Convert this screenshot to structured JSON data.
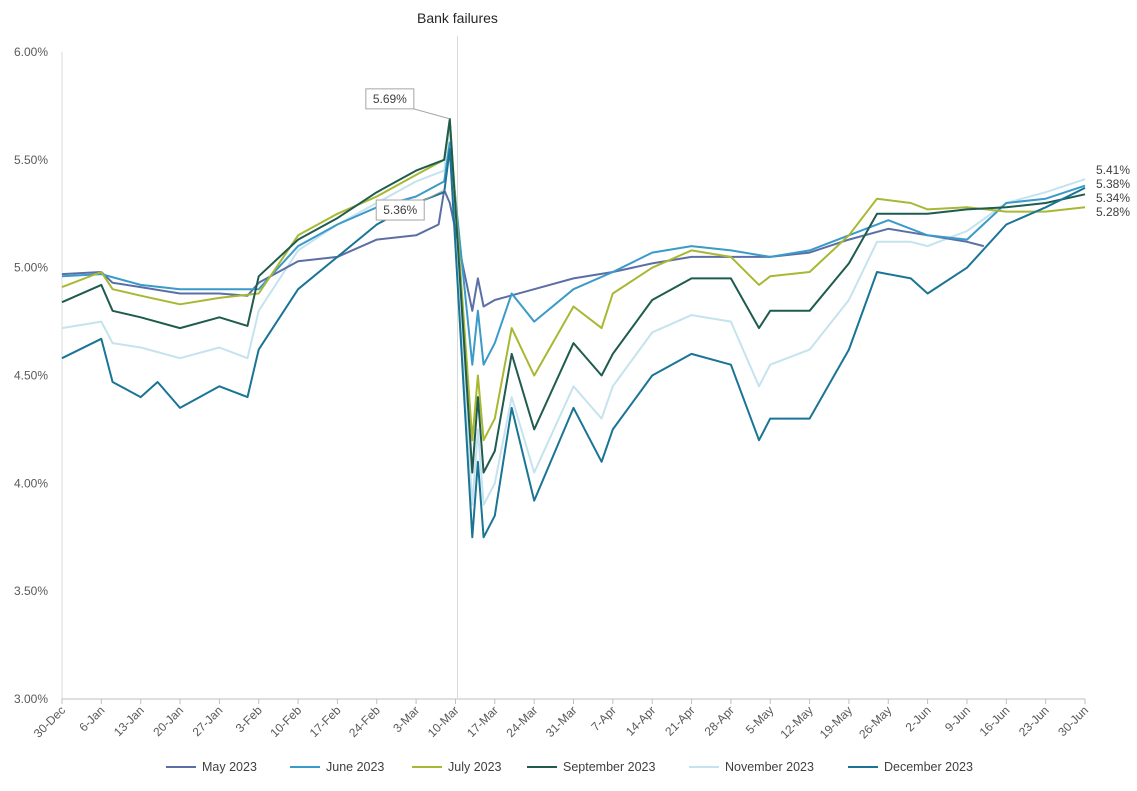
{
  "chart_data": {
    "type": "line",
    "title": "",
    "xlabel": "",
    "ylabel": "",
    "ylim": [
      3.0,
      6.0
    ],
    "y_ticks": [
      "3.00%",
      "3.50%",
      "4.00%",
      "4.50%",
      "5.00%",
      "5.50%",
      "6.00%"
    ],
    "x_ticks": [
      "30-Dec",
      "6-Jan",
      "13-Jan",
      "20-Jan",
      "27-Jan",
      "3-Feb",
      "10-Feb",
      "17-Feb",
      "24-Feb",
      "3-Mar",
      "10-Mar",
      "17-Mar",
      "24-Mar",
      "31-Mar",
      "7-Apr",
      "14-Apr",
      "21-Apr",
      "28-Apr",
      "5-May",
      "12-May",
      "19-May",
      "26-May",
      "2-Jun",
      "9-Jun",
      "16-Jun",
      "23-Jun",
      "30-Jun"
    ],
    "grid": false,
    "legend_position": "bottom",
    "event_marker": {
      "label": "Bank failures",
      "date": "10-Mar"
    },
    "annotations": [
      {
        "text": "5.69%",
        "date": "9-Mar",
        "value": 5.69
      },
      {
        "text": "5.36%",
        "date": "8-Mar",
        "value": 5.36
      }
    ],
    "end_labels": [
      "5.41%",
      "5.38%",
      "5.34%",
      "5.28%"
    ],
    "series": [
      {
        "name": "May 2023",
        "color": "#5B6FA6",
        "points": [
          [
            "30-Dec",
            4.97
          ],
          [
            "6-Jan",
            4.98
          ],
          [
            "8-Jan",
            4.93
          ],
          [
            "13-Jan",
            4.91
          ],
          [
            "20-Jan",
            4.88
          ],
          [
            "27-Jan",
            4.88
          ],
          [
            "1-Feb",
            4.87
          ],
          [
            "3-Feb",
            4.93
          ],
          [
            "10-Feb",
            5.03
          ],
          [
            "17-Feb",
            5.05
          ],
          [
            "24-Feb",
            5.13
          ],
          [
            "3-Mar",
            5.15
          ],
          [
            "7-Mar",
            5.2
          ],
          [
            "8-Mar",
            5.36
          ],
          [
            "9-Mar",
            5.3
          ],
          [
            "13-Mar",
            4.8
          ],
          [
            "14-Mar",
            4.95
          ],
          [
            "15-Mar",
            4.82
          ],
          [
            "17-Mar",
            4.85
          ],
          [
            "24-Mar",
            4.9
          ],
          [
            "31-Mar",
            4.95
          ],
          [
            "7-Apr",
            4.98
          ],
          [
            "14-Apr",
            5.02
          ],
          [
            "21-Apr",
            5.05
          ],
          [
            "28-Apr",
            5.05
          ],
          [
            "5-May",
            5.05
          ],
          [
            "12-May",
            5.07
          ],
          [
            "19-May",
            5.13
          ],
          [
            "26-May",
            5.18
          ],
          [
            "2-Jun",
            5.15
          ],
          [
            "9-Jun",
            5.12
          ],
          [
            "12-Jun",
            5.1
          ]
        ]
      },
      {
        "name": "June 2023",
        "color": "#3A9AC8",
        "points": [
          [
            "30-Dec",
            4.96
          ],
          [
            "6-Jan",
            4.97
          ],
          [
            "13-Jan",
            4.92
          ],
          [
            "20-Jan",
            4.9
          ],
          [
            "27-Jan",
            4.9
          ],
          [
            "3-Feb",
            4.9
          ],
          [
            "10-Feb",
            5.1
          ],
          [
            "17-Feb",
            5.2
          ],
          [
            "24-Feb",
            5.28
          ],
          [
            "3-Mar",
            5.33
          ],
          [
            "8-Mar",
            5.4
          ],
          [
            "9-Mar",
            5.58
          ],
          [
            "13-Mar",
            4.55
          ],
          [
            "14-Mar",
            4.8
          ],
          [
            "15-Mar",
            4.55
          ],
          [
            "17-Mar",
            4.65
          ],
          [
            "20-Mar",
            4.88
          ],
          [
            "24-Mar",
            4.75
          ],
          [
            "31-Mar",
            4.9
          ],
          [
            "7-Apr",
            4.98
          ],
          [
            "14-Apr",
            5.07
          ],
          [
            "21-Apr",
            5.1
          ],
          [
            "28-Apr",
            5.08
          ],
          [
            "5-May",
            5.05
          ],
          [
            "12-May",
            5.08
          ],
          [
            "19-May",
            5.15
          ],
          [
            "26-May",
            5.22
          ],
          [
            "2-Jun",
            5.15
          ],
          [
            "9-Jun",
            5.13
          ],
          [
            "16-Jun",
            5.3
          ],
          [
            "23-Jun",
            5.32
          ],
          [
            "30-Jun",
            5.38
          ]
        ]
      },
      {
        "name": "July 2023",
        "color": "#A8B832",
        "points": [
          [
            "30-Dec",
            4.91
          ],
          [
            "6-Jan",
            4.98
          ],
          [
            "8-Jan",
            4.9
          ],
          [
            "13-Jan",
            4.87
          ],
          [
            "20-Jan",
            4.83
          ],
          [
            "27-Jan",
            4.86
          ],
          [
            "3-Feb",
            4.88
          ],
          [
            "10-Feb",
            5.15
          ],
          [
            "17-Feb",
            5.25
          ],
          [
            "24-Feb",
            5.33
          ],
          [
            "3-Mar",
            5.43
          ],
          [
            "8-Mar",
            5.5
          ],
          [
            "9-Mar",
            5.68
          ],
          [
            "13-Mar",
            4.2
          ],
          [
            "14-Mar",
            4.5
          ],
          [
            "15-Mar",
            4.2
          ],
          [
            "17-Mar",
            4.3
          ],
          [
            "20-Mar",
            4.72
          ],
          [
            "24-Mar",
            4.5
          ],
          [
            "31-Mar",
            4.82
          ],
          [
            "5-Apr",
            4.72
          ],
          [
            "7-Apr",
            4.88
          ],
          [
            "14-Apr",
            5.0
          ],
          [
            "21-Apr",
            5.08
          ],
          [
            "28-Apr",
            5.05
          ],
          [
            "3-May",
            4.92
          ],
          [
            "5-May",
            4.96
          ],
          [
            "12-May",
            4.98
          ],
          [
            "19-May",
            5.15
          ],
          [
            "24-May",
            5.32
          ],
          [
            "30-May",
            5.3
          ],
          [
            "2-Jun",
            5.27
          ],
          [
            "9-Jun",
            5.28
          ],
          [
            "16-Jun",
            5.26
          ],
          [
            "23-Jun",
            5.26
          ],
          [
            "30-Jun",
            5.28
          ]
        ]
      },
      {
        "name": "September 2023",
        "color": "#1F5C4E",
        "points": [
          [
            "30-Dec",
            4.84
          ],
          [
            "6-Jan",
            4.92
          ],
          [
            "8-Jan",
            4.8
          ],
          [
            "13-Jan",
            4.77
          ],
          [
            "20-Jan",
            4.72
          ],
          [
            "27-Jan",
            4.77
          ],
          [
            "1-Feb",
            4.73
          ],
          [
            "3-Feb",
            4.96
          ],
          [
            "10-Feb",
            5.13
          ],
          [
            "17-Feb",
            5.23
          ],
          [
            "24-Feb",
            5.35
          ],
          [
            "3-Mar",
            5.45
          ],
          [
            "8-Mar",
            5.5
          ],
          [
            "9-Mar",
            5.69
          ],
          [
            "13-Mar",
            4.05
          ],
          [
            "14-Mar",
            4.4
          ],
          [
            "15-Mar",
            4.05
          ],
          [
            "17-Mar",
            4.15
          ],
          [
            "20-Mar",
            4.6
          ],
          [
            "24-Mar",
            4.25
          ],
          [
            "31-Mar",
            4.65
          ],
          [
            "5-Apr",
            4.5
          ],
          [
            "7-Apr",
            4.6
          ],
          [
            "14-Apr",
            4.85
          ],
          [
            "21-Apr",
            4.95
          ],
          [
            "28-Apr",
            4.95
          ],
          [
            "3-May",
            4.72
          ],
          [
            "5-May",
            4.8
          ],
          [
            "12-May",
            4.8
          ],
          [
            "19-May",
            5.02
          ],
          [
            "24-May",
            5.25
          ],
          [
            "30-May",
            5.25
          ],
          [
            "2-Jun",
            5.25
          ],
          [
            "9-Jun",
            5.27
          ],
          [
            "16-Jun",
            5.28
          ],
          [
            "23-Jun",
            5.3
          ],
          [
            "30-Jun",
            5.34
          ]
        ]
      },
      {
        "name": "November 2023",
        "color": "#C5E3EE",
        "points": [
          [
            "30-Dec",
            4.72
          ],
          [
            "6-Jan",
            4.75
          ],
          [
            "8-Jan",
            4.65
          ],
          [
            "13-Jan",
            4.63
          ],
          [
            "20-Jan",
            4.58
          ],
          [
            "27-Jan",
            4.63
          ],
          [
            "1-Feb",
            4.58
          ],
          [
            "3-Feb",
            4.8
          ],
          [
            "10-Feb",
            5.08
          ],
          [
            "17-Feb",
            5.2
          ],
          [
            "24-Feb",
            5.3
          ],
          [
            "3-Mar",
            5.4
          ],
          [
            "8-Mar",
            5.45
          ],
          [
            "9-Mar",
            5.65
          ],
          [
            "13-Mar",
            3.9
          ],
          [
            "14-Mar",
            4.25
          ],
          [
            "15-Mar",
            3.9
          ],
          [
            "17-Mar",
            4.0
          ],
          [
            "20-Mar",
            4.4
          ],
          [
            "24-Mar",
            4.05
          ],
          [
            "31-Mar",
            4.45
          ],
          [
            "5-Apr",
            4.3
          ],
          [
            "7-Apr",
            4.45
          ],
          [
            "14-Apr",
            4.7
          ],
          [
            "21-Apr",
            4.78
          ],
          [
            "28-Apr",
            4.75
          ],
          [
            "3-May",
            4.45
          ],
          [
            "5-May",
            4.55
          ],
          [
            "12-May",
            4.62
          ],
          [
            "19-May",
            4.85
          ],
          [
            "24-May",
            5.12
          ],
          [
            "30-May",
            5.12
          ],
          [
            "2-Jun",
            5.1
          ],
          [
            "9-Jun",
            5.17
          ],
          [
            "16-Jun",
            5.3
          ],
          [
            "23-Jun",
            5.35
          ],
          [
            "30-Jun",
            5.41
          ]
        ]
      },
      {
        "name": "December 2023",
        "color": "#1A7496",
        "points": [
          [
            "30-Dec",
            4.58
          ],
          [
            "6-Jan",
            4.67
          ],
          [
            "8-Jan",
            4.47
          ],
          [
            "13-Jan",
            4.4
          ],
          [
            "16-Jan",
            4.47
          ],
          [
            "20-Jan",
            4.35
          ],
          [
            "27-Jan",
            4.45
          ],
          [
            "1-Feb",
            4.4
          ],
          [
            "3-Feb",
            4.62
          ],
          [
            "10-Feb",
            4.9
          ],
          [
            "17-Feb",
            5.05
          ],
          [
            "24-Feb",
            5.2
          ],
          [
            "3-Mar",
            5.3
          ],
          [
            "8-Mar",
            5.35
          ],
          [
            "9-Mar",
            5.55
          ],
          [
            "13-Mar",
            3.75
          ],
          [
            "14-Mar",
            4.1
          ],
          [
            "15-Mar",
            3.75
          ],
          [
            "17-Mar",
            3.85
          ],
          [
            "20-Mar",
            4.35
          ],
          [
            "24-Mar",
            3.92
          ],
          [
            "31-Mar",
            4.35
          ],
          [
            "5-Apr",
            4.1
          ],
          [
            "7-Apr",
            4.25
          ],
          [
            "14-Apr",
            4.5
          ],
          [
            "21-Apr",
            4.6
          ],
          [
            "28-Apr",
            4.55
          ],
          [
            "3-May",
            4.2
          ],
          [
            "5-May",
            4.3
          ],
          [
            "12-May",
            4.3
          ],
          [
            "19-May",
            4.62
          ],
          [
            "24-May",
            4.98
          ],
          [
            "30-May",
            4.95
          ],
          [
            "2-Jun",
            4.88
          ],
          [
            "9-Jun",
            5.0
          ],
          [
            "16-Jun",
            5.2
          ],
          [
            "23-Jun",
            5.28
          ],
          [
            "30-Jun",
            5.37
          ]
        ]
      }
    ]
  }
}
